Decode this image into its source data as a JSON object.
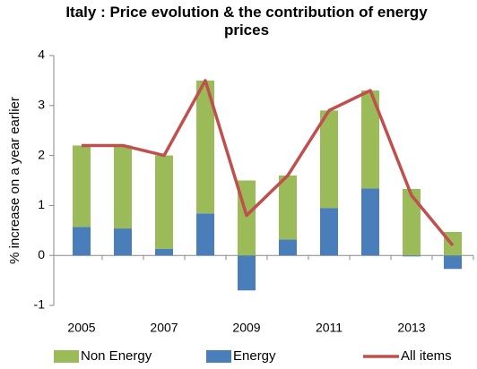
{
  "chart_data": {
    "type": "bar",
    "title": "Italy : Price evolution & the contribution of energy prices",
    "y_label": "% increase on a year earlier",
    "categories": [
      "2005",
      null,
      "2007",
      null,
      "2009",
      null,
      "2011",
      null,
      "2013",
      null
    ],
    "series": [
      {
        "name": "Energy",
        "type": "bar",
        "color": "#4a7ebb",
        "values": [
          0.57,
          0.54,
          0.13,
          0.84,
          -0.7,
          0.32,
          0.95,
          1.34,
          -0.02,
          -0.27
        ]
      },
      {
        "name": "Non Energy",
        "type": "bar",
        "color": "#9bbb59",
        "values": [
          1.63,
          1.66,
          1.87,
          2.66,
          1.5,
          1.28,
          1.95,
          1.96,
          1.33,
          0.47
        ]
      },
      {
        "name": "All items",
        "type": "line",
        "color": "#c0504d",
        "values": [
          2.2,
          2.2,
          2.0,
          3.5,
          0.8,
          1.6,
          2.9,
          3.3,
          1.2,
          0.2
        ]
      }
    ],
    "ylim": [
      -1,
      4
    ],
    "yticks": [
      -1,
      0,
      1,
      2,
      3,
      4
    ],
    "grid": false,
    "legend": "bottom"
  }
}
